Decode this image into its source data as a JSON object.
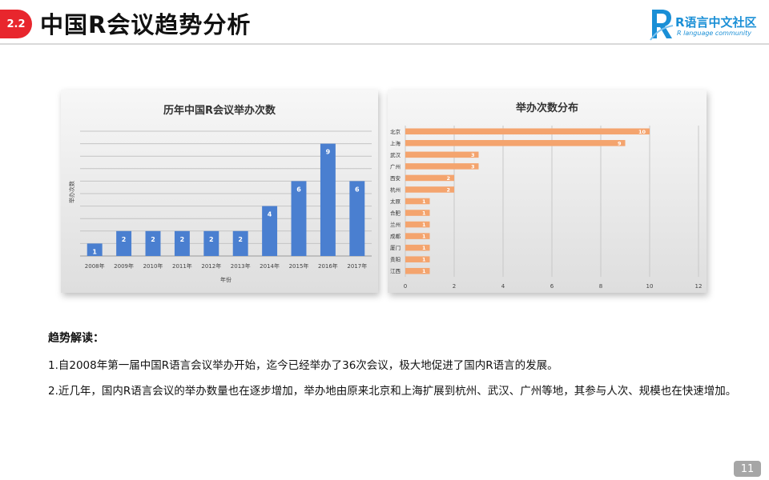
{
  "header": {
    "section_number": "2.2",
    "title": "中国R会议趋势分析",
    "logo_name": "R语言中文社区",
    "logo_subtitle": "R language community",
    "logo_icon": "R-letter-icon",
    "accent_color": "#e8262d",
    "logo_color": "#1a8fd6"
  },
  "chart_data": [
    {
      "type": "bar",
      "title": "历年中国R会议举办次数",
      "xlabel": "年份",
      "ylabel": "举办次数",
      "categories": [
        "2008年",
        "2009年",
        "2010年",
        "2011年",
        "2012年",
        "2013年",
        "2014年",
        "2015年",
        "2016年",
        "2017年"
      ],
      "values": [
        1,
        2,
        2,
        2,
        2,
        2,
        4,
        6,
        9,
        6
      ],
      "ylim": [
        0,
        10
      ],
      "grid": true,
      "data_labels": true,
      "color": "#4a7fd0"
    },
    {
      "type": "bar",
      "orientation": "horizontal",
      "title": "举办次数分布",
      "categories": [
        "北京",
        "上海",
        "武汉",
        "广州",
        "西安",
        "杭州",
        "太原",
        "合肥",
        "兰州",
        "成都",
        "厦门",
        "贵阳",
        "江西"
      ],
      "values": [
        10,
        9,
        3,
        3,
        2,
        2,
        1,
        1,
        1,
        1,
        1,
        1,
        1
      ],
      "xlim": [
        0,
        12
      ],
      "xticks": [
        "0",
        "2",
        "4",
        "6",
        "8",
        "10",
        "12"
      ],
      "grid": true,
      "data_labels": true,
      "color": "#f4a46e"
    }
  ],
  "analysis": {
    "heading": "趋势解读：",
    "points": [
      "1.自2008年第一届中国R语言会议举办开始，迄今已经举办了36次会议，极大地促进了国内R语言的发展。",
      "2.近几年，国内R语言会议的举办数量也在逐步增加，举办地由原来北京和上海扩展到杭州、武汉、广州等地，其参与人次、规模也在快速增加。"
    ]
  },
  "page_number": "11"
}
